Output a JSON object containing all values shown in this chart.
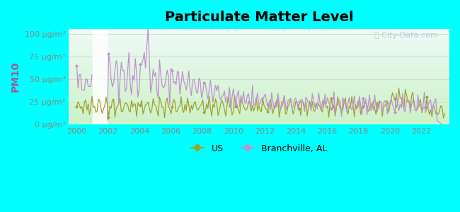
{
  "title": "Particulate Matter Level",
  "ylabel": "PM10",
  "background_color": "#00FFFF",
  "plot_bg_top": "#f0f8ff",
  "plot_bg_bottom": "#d0f0c0",
  "title_fontsize": 14,
  "ylim": [
    0,
    105
  ],
  "yticks": [
    0,
    25,
    50,
    75,
    100
  ],
  "ytick_labels": [
    "0 μg/m³",
    "25 μg/m³",
    "50 μg/m³",
    "75 μg/m³",
    "100 μg/m³"
  ],
  "xlim": [
    1999.5,
    2023.8
  ],
  "xticks": [
    2000,
    2002,
    2004,
    2006,
    2008,
    2010,
    2012,
    2014,
    2016,
    2018,
    2020,
    2022
  ],
  "branchville_color": "#c090d0",
  "us_color": "#a0a030",
  "legend_labels": [
    "Branchville, AL",
    "US"
  ],
  "watermark": "City-Data.com",
  "ylabel_color": "#9060a0",
  "tick_color": "#888888",
  "grid_color": "#ccddcc",
  "gap_start": 2001.0,
  "gap_end": 2001.9
}
